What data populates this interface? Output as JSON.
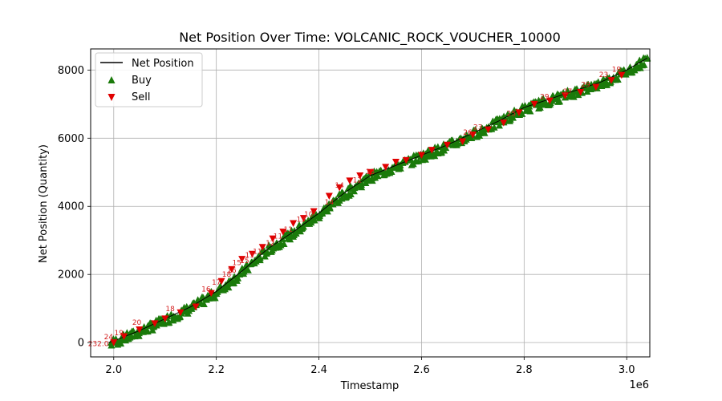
{
  "chart_data": {
    "type": "line",
    "title": "Net Position Over Time: VOLCANIC_ROCK_VOUCHER_10000",
    "xlabel": "Timestamp",
    "ylabel": "Net Position (Quantity)",
    "x_offset_text": "1e6",
    "xlim": [
      1.955,
      3.045
    ],
    "ylim": [
      -420,
      8620
    ],
    "x_ticks": [
      2.0,
      2.2,
      2.4,
      2.6,
      2.8,
      3.0
    ],
    "x_tick_labels": [
      "2.0",
      "2.2",
      "2.4",
      "2.6",
      "2.8",
      "3.0"
    ],
    "y_ticks": [
      0,
      2000,
      4000,
      6000,
      8000
    ],
    "y_tick_labels": [
      "0",
      "2000",
      "4000",
      "6000",
      "8000"
    ],
    "grid": true,
    "legend_position": "top-left",
    "legend": [
      {
        "name": "Net Position",
        "marker": "line",
        "color": "#000000"
      },
      {
        "name": "Buy",
        "marker": "triangle-up",
        "color": "#1a7a0a"
      },
      {
        "name": "Sell",
        "marker": "triangle-down",
        "color": "#e00000"
      }
    ],
    "series": [
      {
        "name": "Net Position",
        "color": "#000000",
        "x": [
          1.99,
          2.0,
          2.05,
          2.1,
          2.15,
          2.2,
          2.25,
          2.3,
          2.35,
          2.4,
          2.45,
          2.5,
          2.55,
          2.6,
          2.65,
          2.7,
          2.75,
          2.8,
          2.85,
          2.9,
          2.95,
          3.0,
          3.04
        ],
        "y": [
          0,
          50,
          350,
          700,
          1050,
          1500,
          2100,
          2750,
          3250,
          3800,
          4400,
          4900,
          5200,
          5500,
          5800,
          6150,
          6500,
          6900,
          7150,
          7400,
          7650,
          8000,
          8350
        ]
      }
    ],
    "buy_band_halfwidth": 130,
    "buy_markers_count": 520,
    "sell_markers": {
      "x": [
        2.0,
        2.02,
        2.05,
        2.08,
        2.1,
        2.13,
        2.16,
        2.19,
        2.21,
        2.23,
        2.25,
        2.27,
        2.29,
        2.31,
        2.33,
        2.35,
        2.37,
        2.39,
        2.42,
        2.44,
        2.46,
        2.48,
        2.5,
        2.53,
        2.55,
        2.57,
        2.6,
        2.62,
        2.65,
        2.68,
        2.7,
        2.73,
        2.76,
        2.79,
        2.82,
        2.85,
        2.88,
        2.91,
        2.94,
        2.97,
        2.99
      ],
      "y": [
        0,
        180,
        380,
        560,
        700,
        880,
        1050,
        1450,
        1800,
        2150,
        2450,
        2600,
        2800,
        3050,
        3250,
        3500,
        3650,
        3850,
        4300,
        4550,
        4750,
        4900,
        5000,
        5150,
        5300,
        5350,
        5500,
        5650,
        5800,
        5900,
        6100,
        6250,
        6450,
        6750,
        7000,
        7100,
        7250,
        7350,
        7500,
        7700,
        7850
      ]
    },
    "annotations": [
      {
        "text": "232.0",
        "x": 1.97,
        "y": -100
      },
      {
        "text": "24",
        "x": 1.99,
        "y": 100
      },
      {
        "text": "19",
        "x": 2.01,
        "y": 220
      },
      {
        "text": "20",
        "x": 2.045,
        "y": 520
      },
      {
        "text": "18",
        "x": 2.11,
        "y": 920
      },
      {
        "text": "16",
        "x": 2.18,
        "y": 1500
      },
      {
        "text": "17",
        "x": 2.2,
        "y": 1700
      },
      {
        "text": "18",
        "x": 2.22,
        "y": 1930
      },
      {
        "text": "16",
        "x": 2.23,
        "y": 2050
      },
      {
        "text": "15",
        "x": 2.24,
        "y": 2280
      },
      {
        "text": "15",
        "x": 2.255,
        "y": 2330
      },
      {
        "text": "11",
        "x": 2.265,
        "y": 2500
      },
      {
        "text": "11",
        "x": 2.28,
        "y": 2600
      },
      {
        "text": "12",
        "x": 2.305,
        "y": 2850
      },
      {
        "text": "11",
        "x": 2.32,
        "y": 3050
      },
      {
        "text": "11",
        "x": 2.34,
        "y": 3250
      },
      {
        "text": "13",
        "x": 2.365,
        "y": 3550
      },
      {
        "text": "10",
        "x": 2.38,
        "y": 3700
      },
      {
        "text": "14",
        "x": 2.42,
        "y": 4050
      },
      {
        "text": "14",
        "x": 2.44,
        "y": 4550
      },
      {
        "text": "12",
        "x": 2.475,
        "y": 4700
      },
      {
        "text": "13",
        "x": 2.5,
        "y": 4950
      },
      {
        "text": "26",
        "x": 2.69,
        "y": 6100
      },
      {
        "text": "23",
        "x": 2.71,
        "y": 6250
      },
      {
        "text": "25",
        "x": 2.775,
        "y": 6650
      },
      {
        "text": "29",
        "x": 2.84,
        "y": 7150
      },
      {
        "text": "27",
        "x": 2.885,
        "y": 7300
      },
      {
        "text": "29",
        "x": 2.92,
        "y": 7500
      },
      {
        "text": "23",
        "x": 2.955,
        "y": 7800
      },
      {
        "text": "19",
        "x": 2.98,
        "y": 7950
      }
    ]
  }
}
